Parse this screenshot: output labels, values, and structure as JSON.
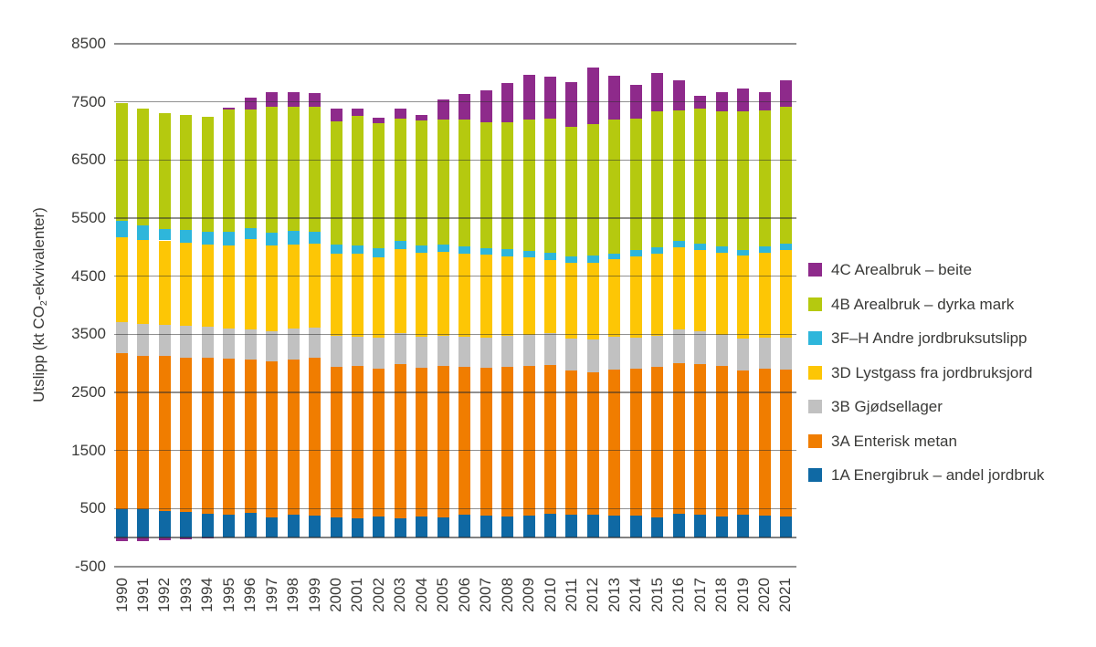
{
  "chart_data": {
    "type": "bar",
    "stacked": true,
    "ylabel": {
      "prefix": "Utslipp (kt CO",
      "sub": "2",
      "suffix": "-ekvivalenter)"
    },
    "ylim": [
      -500,
      8500
    ],
    "yticks": [
      -500,
      500,
      1500,
      2500,
      3500,
      4500,
      5500,
      6500,
      7500,
      8500
    ],
    "baseline": 0,
    "grid": "horizontal-over-bars",
    "legend": {
      "position": "right",
      "reverse_order": true
    },
    "categories": [
      "1990",
      "1991",
      "1992",
      "1993",
      "1994",
      "1995",
      "1996",
      "1997",
      "1998",
      "1999",
      "2000",
      "2001",
      "2002",
      "2003",
      "2004",
      "2005",
      "2006",
      "2007",
      "2008",
      "2009",
      "2010",
      "2011",
      "2012",
      "2013",
      "2014",
      "2015",
      "2016",
      "2017",
      "2018",
      "2019",
      "2020",
      "2021"
    ],
    "series": [
      {
        "name": "1A Energibruk – andel jordbruk",
        "color": "#0f69a4",
        "values": [
          490,
          490,
          460,
          445,
          410,
          390,
          420,
          355,
          390,
          375,
          355,
          325,
          365,
          340,
          365,
          355,
          395,
          375,
          360,
          375,
          415,
          390,
          395,
          375,
          375,
          350,
          405,
          390,
          360,
          390,
          375,
          360
        ]
      },
      {
        "name": "3A Enterisk metan",
        "color": "#f07d00",
        "values": [
          2685,
          2645,
          2665,
          2650,
          2685,
          2690,
          2650,
          2675,
          2670,
          2720,
          2585,
          2630,
          2540,
          2640,
          2560,
          2600,
          2545,
          2550,
          2580,
          2575,
          2550,
          2490,
          2455,
          2515,
          2530,
          2590,
          2605,
          2590,
          2590,
          2485,
          2530,
          2530
        ]
      },
      {
        "name": "3B Gjødsellager",
        "color": "#c1c1c1",
        "values": [
          535,
          540,
          535,
          545,
          540,
          525,
          510,
          525,
          535,
          525,
          540,
          510,
          545,
          540,
          540,
          525,
          525,
          515,
          540,
          540,
          550,
          550,
          560,
          575,
          545,
          540,
          575,
          565,
          540,
          550,
          545,
          550
        ]
      },
      {
        "name": "3D Lystgass fra jordbruksjord",
        "color": "#fdc605",
        "values": [
          1460,
          1450,
          1455,
          1430,
          1415,
          1430,
          1555,
          1470,
          1455,
          1440,
          1410,
          1415,
          1380,
          1440,
          1440,
          1435,
          1425,
          1425,
          1355,
          1335,
          1270,
          1295,
          1325,
          1325,
          1395,
          1415,
          1415,
          1405,
          1415,
          1425,
          1455,
          1505
        ]
      },
      {
        "name": "3F–H Andre jordbruksutslipp",
        "color": "#2eb6db",
        "values": [
          280,
          255,
          200,
          225,
          220,
          235,
          195,
          225,
          230,
          210,
          160,
          155,
          155,
          155,
          130,
          135,
          120,
          120,
          130,
          115,
          120,
          120,
          115,
          100,
          105,
          105,
          100,
          105,
          115,
          105,
          115,
          110
        ]
      },
      {
        "name": "4B Arealbruk – dyrka mark",
        "color": "#b5c90f",
        "values": [
          2025,
          2000,
          1995,
          1985,
          1980,
          2095,
          2035,
          2170,
          2140,
          2140,
          2120,
          2230,
          2150,
          2095,
          2150,
          2150,
          2185,
          2165,
          2180,
          2255,
          2310,
          2230,
          2270,
          2300,
          2255,
          2330,
          2255,
          2330,
          2320,
          2385,
          2335,
          2360
        ]
      },
      {
        "name": "4C Arealbruk – beite",
        "color": "#8e2a8b",
        "values": [
          -60,
          -60,
          -45,
          -25,
          -15,
          40,
          210,
          245,
          240,
          245,
          210,
          115,
          90,
          170,
          90,
          335,
          445,
          545,
          680,
          775,
          725,
          760,
          975,
          760,
          590,
          660,
          515,
          225,
          325,
          395,
          320,
          455
        ]
      }
    ]
  }
}
